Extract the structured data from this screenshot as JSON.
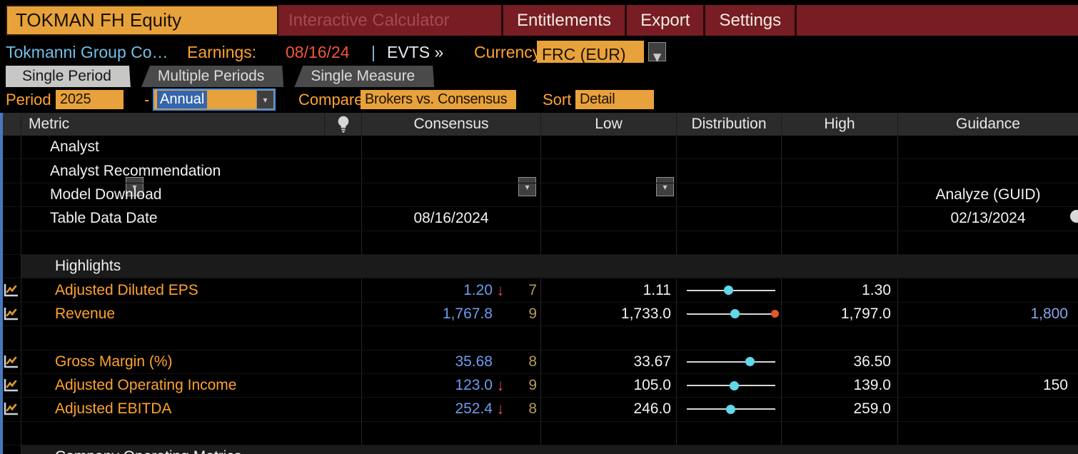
{
  "window": {
    "security_title": "TOKMAN FH Equity",
    "app_title": "Interactive Calculator",
    "menu_items": [
      "Entitlements",
      "Export",
      "Settings"
    ]
  },
  "info_bar": {
    "company": "Tokmanni Group Co…",
    "earnings_label": "Earnings:",
    "earnings_date": "08/16/24",
    "separator": "|",
    "events_link": "EVTS »",
    "currency_label": "Currency",
    "currency_value": "FRC (EUR)"
  },
  "tabs": {
    "items": [
      {
        "label": "Single Period",
        "active": true
      },
      {
        "label": "Multiple Periods",
        "active": false
      },
      {
        "label": "Single Measure",
        "active": false
      }
    ]
  },
  "filters": {
    "period_label": "Period",
    "period_value": "2025",
    "range_separator": "-",
    "frequency_value": "Annual",
    "compare_label": "Compare",
    "compare_value": "Brokers vs. Consensus",
    "sort_label": "Sort",
    "sort_value": "Detail"
  },
  "ui": {
    "dropdown_arrow": "▾",
    "down_arrow": "↓"
  },
  "colors": {
    "accent_orange": "#e8a23b",
    "label_orange": "#ffa22e",
    "menubar_red": "#771d23",
    "consensus_blue": "#6e9bed",
    "dot_cyan": "#5fd8e8",
    "arrow_red": "#e84a5a",
    "guidance_dot_orange": "#e2572b",
    "count_tan": "#b4995f",
    "guidance_blue": "#86a5e6"
  },
  "table": {
    "headers": {
      "metric": "Metric",
      "consensus": "Consensus",
      "low": "Low",
      "distribution": "Distribution",
      "high": "High",
      "guidance": "Guidance"
    },
    "rows": [
      {
        "type": "data",
        "style": "plain",
        "label": "Analyst"
      },
      {
        "type": "data",
        "style": "plain",
        "label": "Analyst Recommendation"
      },
      {
        "type": "data",
        "style": "plain",
        "label": "Model Download",
        "guidance": "Analyze (GUID)",
        "guidance_align": "center"
      },
      {
        "type": "data",
        "style": "plain",
        "label": "Table Data Date",
        "consensus_date": "08/16/2024",
        "guidance": "02/13/2024",
        "guidance_align": "center"
      },
      {
        "type": "blank"
      },
      {
        "type": "section",
        "label": "Highlights"
      },
      {
        "type": "data",
        "style": "metric",
        "icon": true,
        "label": "Adjusted Diluted EPS",
        "consensus": "1.20",
        "down_arrow": true,
        "count": "7",
        "low": "1.11",
        "dist_pos": 0.47,
        "high": "1.30"
      },
      {
        "type": "data",
        "style": "metric",
        "icon": true,
        "label": "Revenue",
        "consensus": "1,767.8",
        "count": "9",
        "low": "1,733.0",
        "dist_pos": 0.54,
        "dist_guidance_marker": true,
        "high": "1,797.0",
        "guidance": "1,800",
        "guidance_align": "right",
        "guidance_color": "blue"
      },
      {
        "type": "blank"
      },
      {
        "type": "data",
        "style": "metric",
        "icon": true,
        "label": "Gross Margin (%)",
        "consensus": "35.68",
        "count": "8",
        "low": "33.67",
        "dist_pos": 0.71,
        "high": "36.50"
      },
      {
        "type": "data",
        "style": "metric",
        "icon": true,
        "label": "Adjusted Operating Income",
        "consensus": "123.0",
        "down_arrow": true,
        "count": "9",
        "low": "105.0",
        "dist_pos": 0.53,
        "high": "139.0",
        "guidance": "150",
        "guidance_align": "right"
      },
      {
        "type": "data",
        "style": "metric",
        "icon": true,
        "label": "Adjusted EBITDA",
        "consensus": "252.4",
        "down_arrow": true,
        "count": "8",
        "low": "246.0",
        "dist_pos": 0.49,
        "high": "259.0"
      },
      {
        "type": "blank"
      },
      {
        "type": "section",
        "label": "Company Operating Metrics"
      }
    ]
  }
}
